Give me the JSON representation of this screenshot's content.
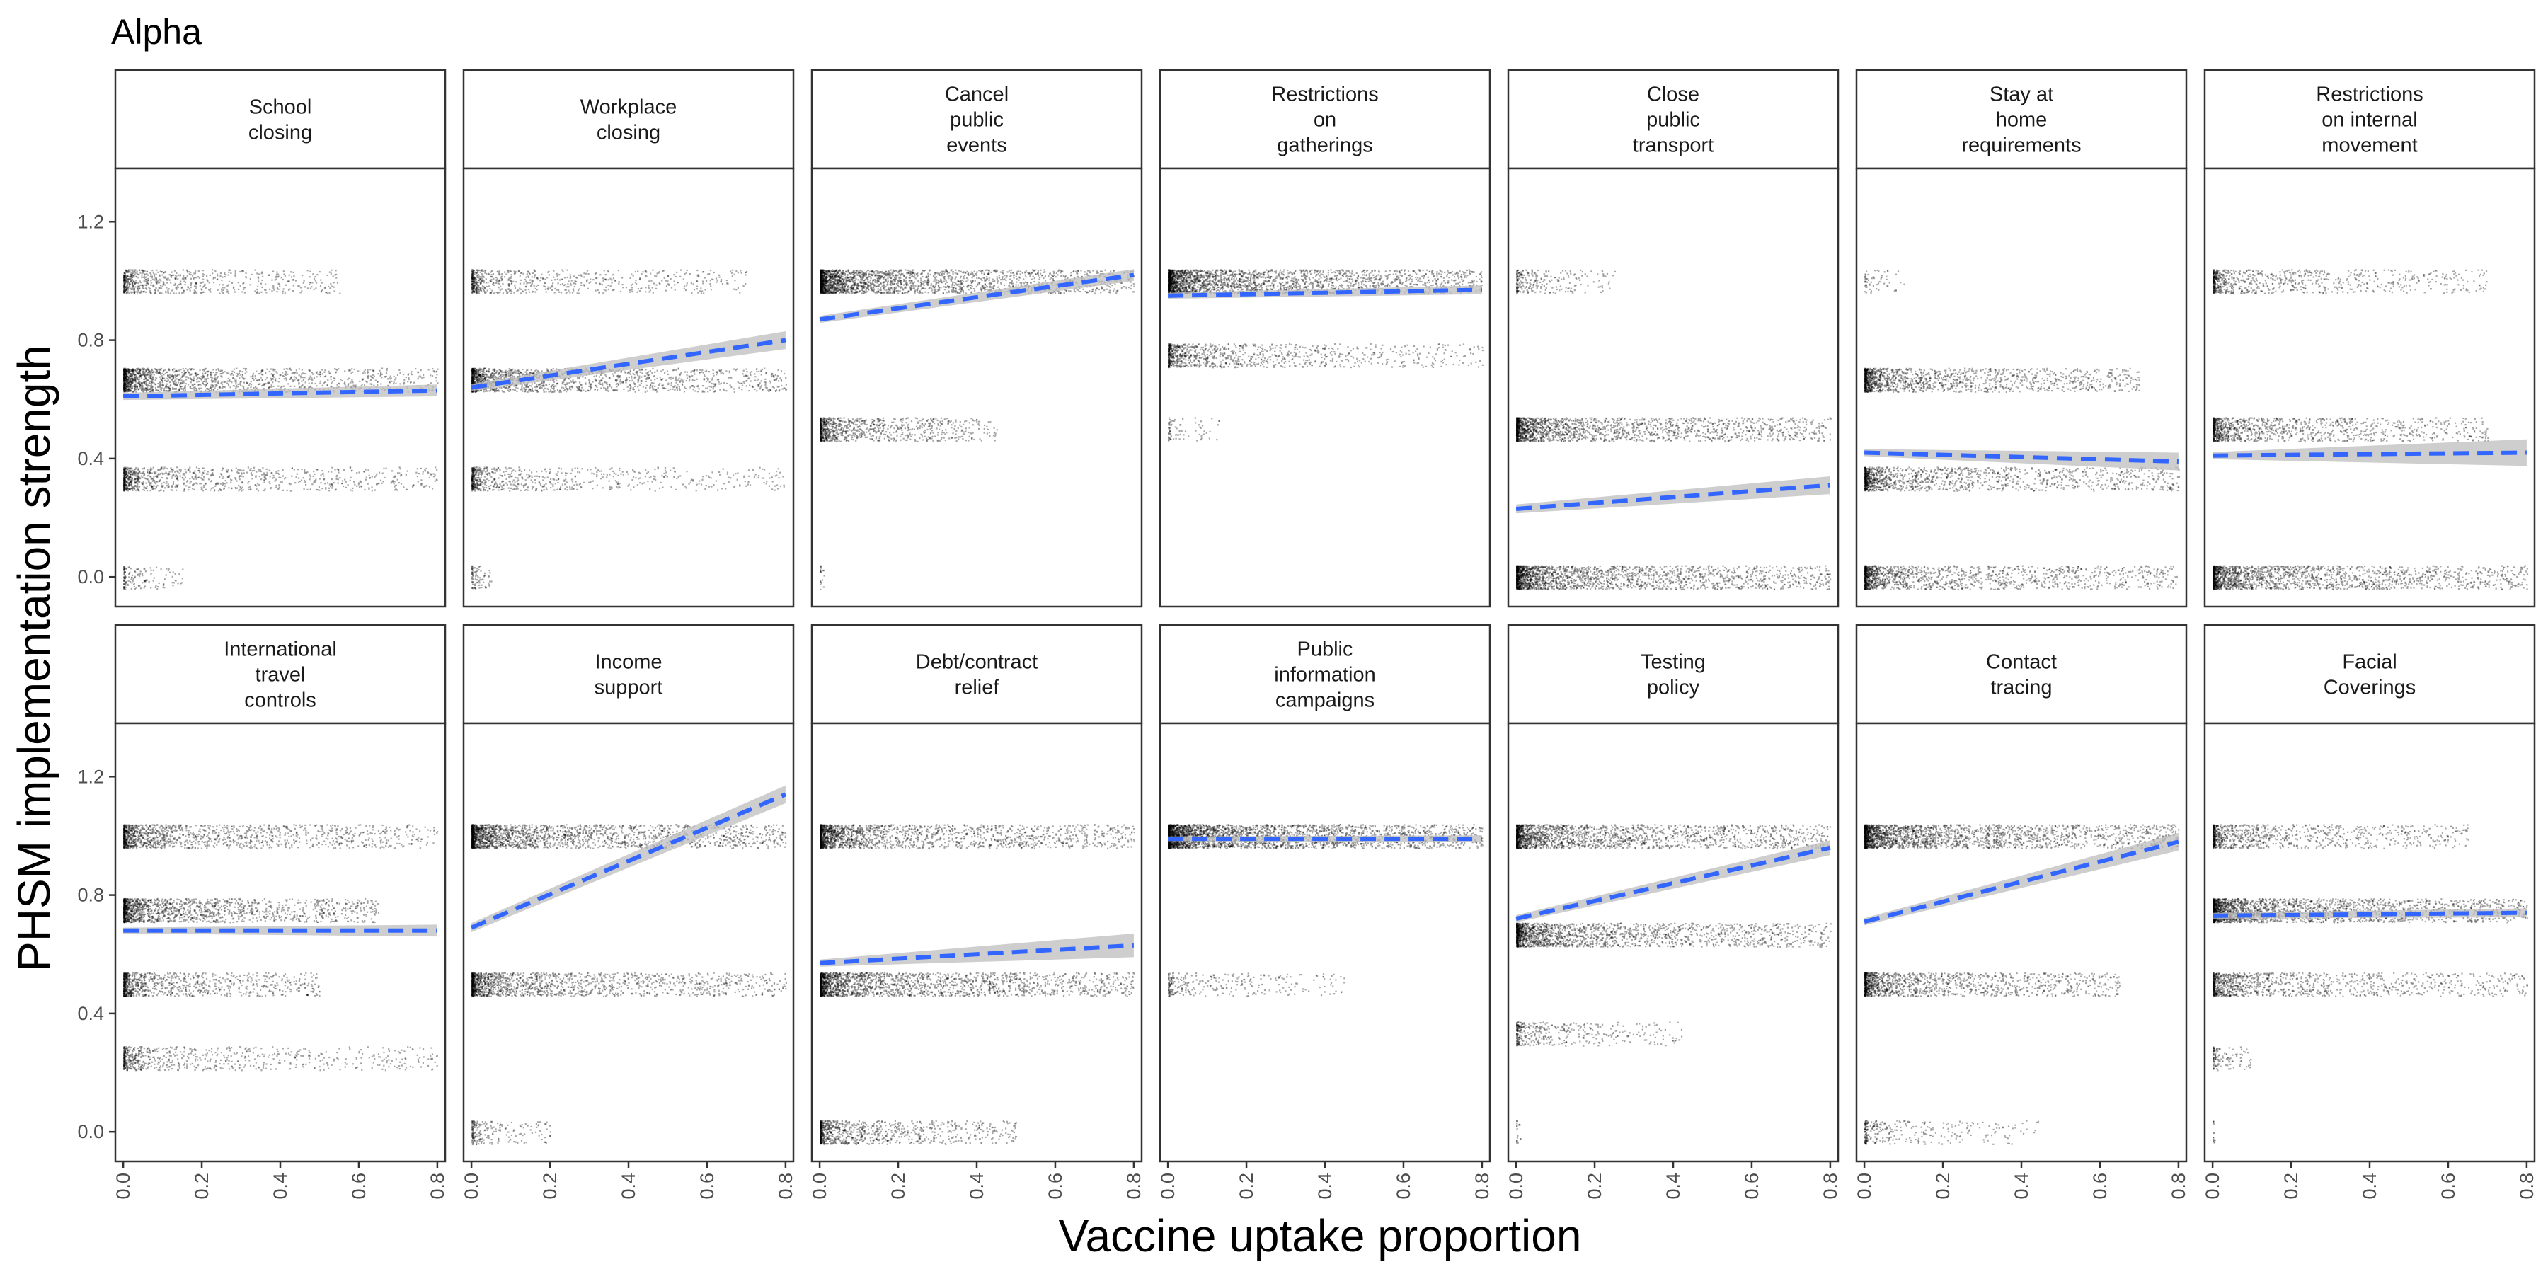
{
  "title": "Alpha",
  "chart_data": {
    "type": "scatter",
    "title": "Alpha",
    "xlabel": "Vaccine uptake proportion",
    "ylabel": "PHSM implementation strength",
    "xlim": [
      -0.02,
      0.82
    ],
    "ylim": [
      -0.1,
      1.38
    ],
    "x_ticks": [
      "0.0",
      "0.2",
      "0.4",
      "0.6",
      "0.8"
    ],
    "y_ticks": [
      "0.0",
      "0.4",
      "0.8",
      "1.2"
    ],
    "x_tick_values": [
      0,
      0.2,
      0.4,
      0.6,
      0.8
    ],
    "y_tick_values": [
      0,
      0.4,
      0.8,
      1.2
    ],
    "grid": false,
    "layout": {
      "rows": 2,
      "cols": 7
    },
    "colors": {
      "points": "#000000",
      "trend": "#3366ff",
      "ribbon": "#bdbdbd",
      "strip_fill": "#ffffff",
      "border": "#333333"
    },
    "panels": [
      {
        "name": "School closing",
        "strip": [
          "School",
          "closing"
        ],
        "levels": [
          {
            "y": 1.0,
            "xmax": 0.55,
            "n": 700
          },
          {
            "y": 0.667,
            "xmax": 0.8,
            "n": 1600
          },
          {
            "y": 0.333,
            "xmax": 0.8,
            "n": 1000
          },
          {
            "y": 0.0,
            "xmax": 0.15,
            "n": 150
          }
        ],
        "trend": {
          "x0": 0.0,
          "y0": 0.61,
          "x1": 0.8,
          "y1": 0.63,
          "se0": 0.012,
          "se1": 0.02
        }
      },
      {
        "name": "Workplace closing",
        "strip": [
          "Workplace",
          "closing"
        ],
        "levels": [
          {
            "y": 1.0,
            "xmax": 0.7,
            "n": 700
          },
          {
            "y": 0.667,
            "xmax": 0.8,
            "n": 1600
          },
          {
            "y": 0.333,
            "xmax": 0.8,
            "n": 700
          },
          {
            "y": 0.0,
            "xmax": 0.05,
            "n": 80
          }
        ],
        "trend": {
          "x0": 0.0,
          "y0": 0.64,
          "x1": 0.8,
          "y1": 0.8,
          "se0": 0.012,
          "se1": 0.03
        }
      },
      {
        "name": "Cancel public events",
        "strip": [
          "Cancel",
          "public",
          "events"
        ],
        "levels": [
          {
            "y": 1.0,
            "xmax": 0.8,
            "n": 2400
          },
          {
            "y": 0.5,
            "xmax": 0.45,
            "n": 900
          },
          {
            "y": 0.0,
            "xmax": 0.01,
            "n": 20
          }
        ],
        "trend": {
          "x0": 0.0,
          "y0": 0.87,
          "x1": 0.8,
          "y1": 1.02,
          "se0": 0.012,
          "se1": 0.02
        }
      },
      {
        "name": "Restrictions on gatherings",
        "strip": [
          "Restrictions",
          "on",
          "gatherings"
        ],
        "levels": [
          {
            "y": 1.0,
            "xmax": 0.8,
            "n": 2400
          },
          {
            "y": 0.75,
            "xmax": 0.8,
            "n": 1000
          },
          {
            "y": 0.5,
            "xmax": 0.13,
            "n": 80
          }
        ],
        "trend": {
          "x0": 0.0,
          "y0": 0.95,
          "x1": 0.8,
          "y1": 0.97,
          "se0": 0.01,
          "se1": 0.015
        }
      },
      {
        "name": "Close public transport",
        "strip": [
          "Close",
          "public",
          "transport"
        ],
        "levels": [
          {
            "y": 1.0,
            "xmax": 0.25,
            "n": 250
          },
          {
            "y": 0.5,
            "xmax": 0.8,
            "n": 1800
          },
          {
            "y": 0.0,
            "xmax": 0.8,
            "n": 2000
          }
        ],
        "trend": {
          "x0": 0.0,
          "y0": 0.23,
          "x1": 0.8,
          "y1": 0.31,
          "se0": 0.015,
          "se1": 0.03
        }
      },
      {
        "name": "Stay at home requirements",
        "strip": [
          "Stay at",
          "home",
          "requirements"
        ],
        "levels": [
          {
            "y": 1.0,
            "xmax": 0.1,
            "n": 60
          },
          {
            "y": 0.667,
            "xmax": 0.7,
            "n": 1400
          },
          {
            "y": 0.333,
            "xmax": 0.8,
            "n": 1300
          },
          {
            "y": 0.0,
            "xmax": 0.8,
            "n": 1400
          }
        ],
        "trend": {
          "x0": 0.0,
          "y0": 0.42,
          "x1": 0.8,
          "y1": 0.39,
          "se0": 0.012,
          "se1": 0.03
        }
      },
      {
        "name": "Restrictions on internal movement",
        "strip": [
          "Restrictions",
          "on internal",
          "movement"
        ],
        "levels": [
          {
            "y": 1.0,
            "xmax": 0.7,
            "n": 800
          },
          {
            "y": 0.5,
            "xmax": 0.7,
            "n": 1100
          },
          {
            "y": 0.0,
            "xmax": 0.8,
            "n": 1800
          }
        ],
        "trend": {
          "x0": 0.0,
          "y0": 0.41,
          "x1": 0.8,
          "y1": 0.42,
          "se0": 0.012,
          "se1": 0.045
        }
      },
      {
        "name": "International travel controls",
        "strip": [
          "International",
          "travel",
          "controls"
        ],
        "levels": [
          {
            "y": 1.0,
            "xmax": 0.8,
            "n": 1300
          },
          {
            "y": 0.75,
            "xmax": 0.65,
            "n": 1500
          },
          {
            "y": 0.5,
            "xmax": 0.5,
            "n": 900
          },
          {
            "y": 0.25,
            "xmax": 0.8,
            "n": 700
          }
        ],
        "trend": {
          "x0": 0.0,
          "y0": 0.68,
          "x1": 0.8,
          "y1": 0.68,
          "se0": 0.01,
          "se1": 0.02
        }
      },
      {
        "name": "Income support",
        "strip": [
          "Income",
          "support"
        ],
        "levels": [
          {
            "y": 1.0,
            "xmax": 0.8,
            "n": 2000
          },
          {
            "y": 0.5,
            "xmax": 0.8,
            "n": 1500
          },
          {
            "y": 0.0,
            "xmax": 0.2,
            "n": 200
          }
        ],
        "trend": {
          "x0": 0.0,
          "y0": 0.69,
          "x1": 0.8,
          "y1": 1.14,
          "se0": 0.015,
          "se1": 0.03
        }
      },
      {
        "name": "Debt/contract relief",
        "strip": [
          "Debt/contract",
          "relief"
        ],
        "levels": [
          {
            "y": 1.0,
            "xmax": 0.8,
            "n": 1800
          },
          {
            "y": 0.5,
            "xmax": 0.8,
            "n": 2000
          },
          {
            "y": 0.0,
            "xmax": 0.5,
            "n": 900
          }
        ],
        "trend": {
          "x0": 0.0,
          "y0": 0.57,
          "x1": 0.8,
          "y1": 0.63,
          "se0": 0.012,
          "se1": 0.04
        }
      },
      {
        "name": "Public information campaigns",
        "strip": [
          "Public",
          "information",
          "campaigns"
        ],
        "levels": [
          {
            "y": 1.0,
            "xmax": 0.8,
            "n": 3000
          },
          {
            "y": 0.5,
            "xmax": 0.45,
            "n": 300
          }
        ],
        "trend": {
          "x0": 0.0,
          "y0": 0.99,
          "x1": 0.8,
          "y1": 0.99,
          "se0": 0.008,
          "se1": 0.012
        }
      },
      {
        "name": "Testing policy",
        "strip": [
          "Testing",
          "policy"
        ],
        "levels": [
          {
            "y": 1.0,
            "xmax": 0.8,
            "n": 1900
          },
          {
            "y": 0.667,
            "xmax": 0.8,
            "n": 1800
          },
          {
            "y": 0.333,
            "xmax": 0.42,
            "n": 400
          },
          {
            "y": 0.0,
            "xmax": 0.01,
            "n": 20
          }
        ],
        "trend": {
          "x0": 0.0,
          "y0": 0.72,
          "x1": 0.8,
          "y1": 0.96,
          "se0": 0.012,
          "se1": 0.025
        }
      },
      {
        "name": "Contact tracing",
        "strip": [
          "Contact",
          "tracing"
        ],
        "levels": [
          {
            "y": 1.0,
            "xmax": 0.8,
            "n": 2200
          },
          {
            "y": 0.5,
            "xmax": 0.65,
            "n": 1300
          },
          {
            "y": 0.0,
            "xmax": 0.45,
            "n": 300
          }
        ],
        "trend": {
          "x0": 0.0,
          "y0": 0.71,
          "x1": 0.8,
          "y1": 0.98,
          "se0": 0.012,
          "se1": 0.03
        }
      },
      {
        "name": "Facial Coverings",
        "strip": [
          "Facial",
          "Coverings"
        ],
        "levels": [
          {
            "y": 1.0,
            "xmax": 0.65,
            "n": 900
          },
          {
            "y": 0.75,
            "xmax": 0.8,
            "n": 2200
          },
          {
            "y": 0.5,
            "xmax": 0.8,
            "n": 1100
          },
          {
            "y": 0.25,
            "xmax": 0.1,
            "n": 120
          },
          {
            "y": 0.0,
            "xmax": 0.005,
            "n": 15
          }
        ],
        "trend": {
          "x0": 0.0,
          "y0": 0.73,
          "x1": 0.8,
          "y1": 0.74,
          "se0": 0.01,
          "se1": 0.015
        }
      }
    ]
  }
}
